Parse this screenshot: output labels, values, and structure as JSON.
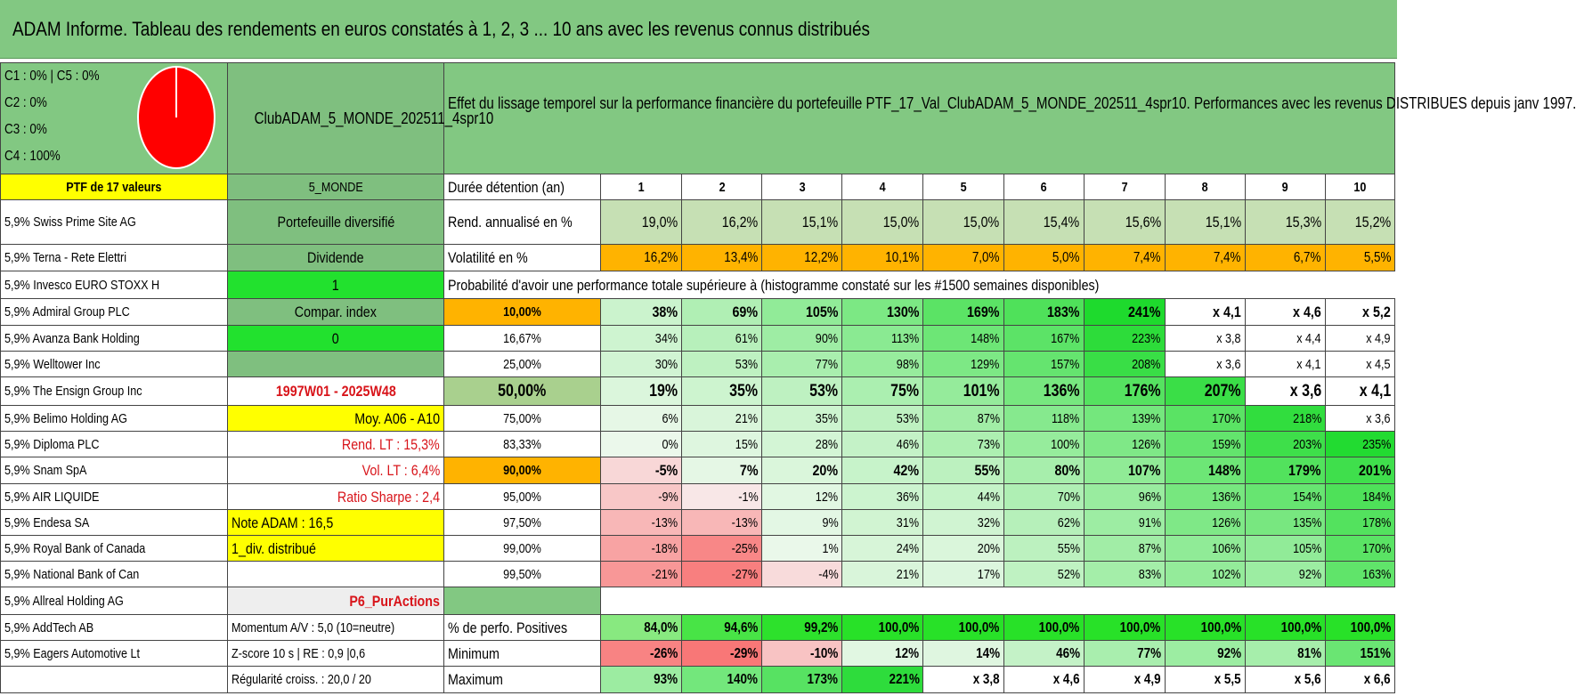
{
  "title": "ADAM Informe. Tableau des rendements en euros constatés à 1, 2, 3 ... 10 ans avec les revenus connus distribués",
  "allocation": {
    "lines": [
      "C1 : 0% | C5 : 0%",
      "C2 : 0%",
      "C3 : 0%",
      "C4 : 100%"
    ],
    "pie_color": "#ff0000",
    "pie_slices": [
      {
        "label": "C4",
        "value": 100
      },
      {
        "label": "C1",
        "value": 0
      }
    ]
  },
  "portfolio_name": "ClubADAM_5_MONDE_202511_4spr10",
  "description": "Effet du lissage temporel sur la performance financière du portefeuille PTF_17_Val_ClubADAM_5_MONDE_202511_4spr10. Performances avec les revenus DISTRIBUES depuis janv 1997.",
  "ptf_header": "PTF de 17 valeurs",
  "holdings": [
    "5,9% Swiss Prime Site AG",
    "5,9% Terna - Rete Elettri",
    "5,9% Invesco EURO STOXX H",
    "5,9% Admiral Group PLC",
    "5,9% Avanza Bank Holding",
    "5,9% Welltower Inc",
    "5,9% The Ensign Group Inc",
    "5,9% Belimo Holding AG",
    "5,9% Diploma PLC",
    "5,9% Snam SpA",
    "5,9% AIR LIQUIDE",
    "5,9% Endesa SA",
    "5,9% Royal Bank of Canada",
    "5,9% National Bank of Can",
    "5,9% Allreal Holding AG",
    "5,9% AddTech AB",
    "5,9% Eagers Automotive Lt"
  ],
  "info": {
    "zone": "5_MONDE",
    "portfolio_type": "Portefeuille diversifié",
    "dividend_label": "Dividende",
    "dividend_value": "1",
    "compar_label": "Compar. index",
    "compar_value": "0",
    "period": "1997W01 - 2025W48",
    "moy": "Moy. A06 - A10",
    "rend_lt": "Rend. LT : 15,3%",
    "vol_lt": "Vol. LT : 6,4%",
    "sharpe": "Ratio Sharpe : 2,4",
    "note": "Note ADAM : 16,5",
    "div_distrib": "1_div. distribué",
    "p6": "P6_PurActions",
    "momentum": "Momentum A/V : 5,0 (10=neutre)",
    "zscore": "Z-score 10 s | RE : 0,9 |0,6",
    "regularite": "Régularité croiss. : 20,0 / 20"
  },
  "duration_label": "Durée détention (an)",
  "years": [
    "1",
    "2",
    "3",
    "4",
    "5",
    "6",
    "7",
    "8",
    "9",
    "10"
  ],
  "rend_label": "Rend. annualisé en %",
  "rend_values": [
    "19,0%",
    "16,2%",
    "15,1%",
    "15,0%",
    "15,0%",
    "15,4%",
    "15,6%",
    "15,1%",
    "15,3%",
    "15,2%"
  ],
  "vol_label": "Volatilité en %",
  "vol_values": [
    "16,2%",
    "13,4%",
    "12,2%",
    "10,1%",
    "7,0%",
    "5,0%",
    "7,4%",
    "7,4%",
    "6,7%",
    "5,5%"
  ],
  "prob_title": "Probabilité d'avoir une performance totale supérieure à (histogramme constaté sur les #1500 semaines disponibles)",
  "prob_rows": [
    {
      "pct": "10,00%",
      "values": [
        "38%",
        "69%",
        "105%",
        "130%",
        "169%",
        "183%",
        "241%",
        "x 4,1",
        "x 4,6",
        "x 5,2"
      ]
    },
    {
      "pct": "16,67%",
      "values": [
        "34%",
        "61%",
        "90%",
        "113%",
        "148%",
        "167%",
        "223%",
        "x 3,8",
        "x 4,4",
        "x 4,9"
      ]
    },
    {
      "pct": "25,00%",
      "values": [
        "30%",
        "53%",
        "77%",
        "98%",
        "129%",
        "157%",
        "208%",
        "x 3,6",
        "x 4,1",
        "x 4,5"
      ]
    },
    {
      "pct": "50,00%",
      "values": [
        "19%",
        "35%",
        "53%",
        "75%",
        "101%",
        "136%",
        "176%",
        "207%",
        "x 3,6",
        "x 4,1"
      ]
    },
    {
      "pct": "75,00%",
      "values": [
        "6%",
        "21%",
        "35%",
        "53%",
        "87%",
        "118%",
        "139%",
        "170%",
        "218%",
        "x 3,6"
      ]
    },
    {
      "pct": "83,33%",
      "values": [
        "0%",
        "15%",
        "28%",
        "46%",
        "73%",
        "100%",
        "126%",
        "159%",
        "203%",
        "235%"
      ]
    },
    {
      "pct": "90,00%",
      "values": [
        "-5%",
        "7%",
        "20%",
        "42%",
        "55%",
        "80%",
        "107%",
        "148%",
        "179%",
        "201%"
      ]
    },
    {
      "pct": "95,00%",
      "values": [
        "-9%",
        "-1%",
        "12%",
        "36%",
        "44%",
        "70%",
        "96%",
        "136%",
        "154%",
        "184%"
      ]
    },
    {
      "pct": "97,50%",
      "values": [
        "-13%",
        "-13%",
        "9%",
        "31%",
        "32%",
        "62%",
        "91%",
        "126%",
        "135%",
        "178%"
      ]
    },
    {
      "pct": "99,00%",
      "values": [
        "-18%",
        "-25%",
        "1%",
        "24%",
        "20%",
        "55%",
        "87%",
        "106%",
        "105%",
        "170%"
      ]
    },
    {
      "pct": "99,50%",
      "values": [
        "-21%",
        "-27%",
        "-4%",
        "21%",
        "17%",
        "52%",
        "83%",
        "102%",
        "92%",
        "163%"
      ]
    }
  ],
  "positives_label": "% de perfo. Positives",
  "positives_values": [
    "84,0%",
    "94,6%",
    "99,2%",
    "100,0%",
    "100,0%",
    "100,0%",
    "100,0%",
    "100,0%",
    "100,0%",
    "100,0%"
  ],
  "min_label": "Minimum",
  "min_values": [
    "-26%",
    "-29%",
    "-10%",
    "12%",
    "14%",
    "46%",
    "77%",
    "92%",
    "81%",
    "151%"
  ],
  "max_label": "Maximum",
  "max_values": [
    "93%",
    "140%",
    "173%",
    "221%",
    "x 3,8",
    "x 4,6",
    "x 4,9",
    "x 5,5",
    "x 5,6",
    "x 6,6"
  ]
}
